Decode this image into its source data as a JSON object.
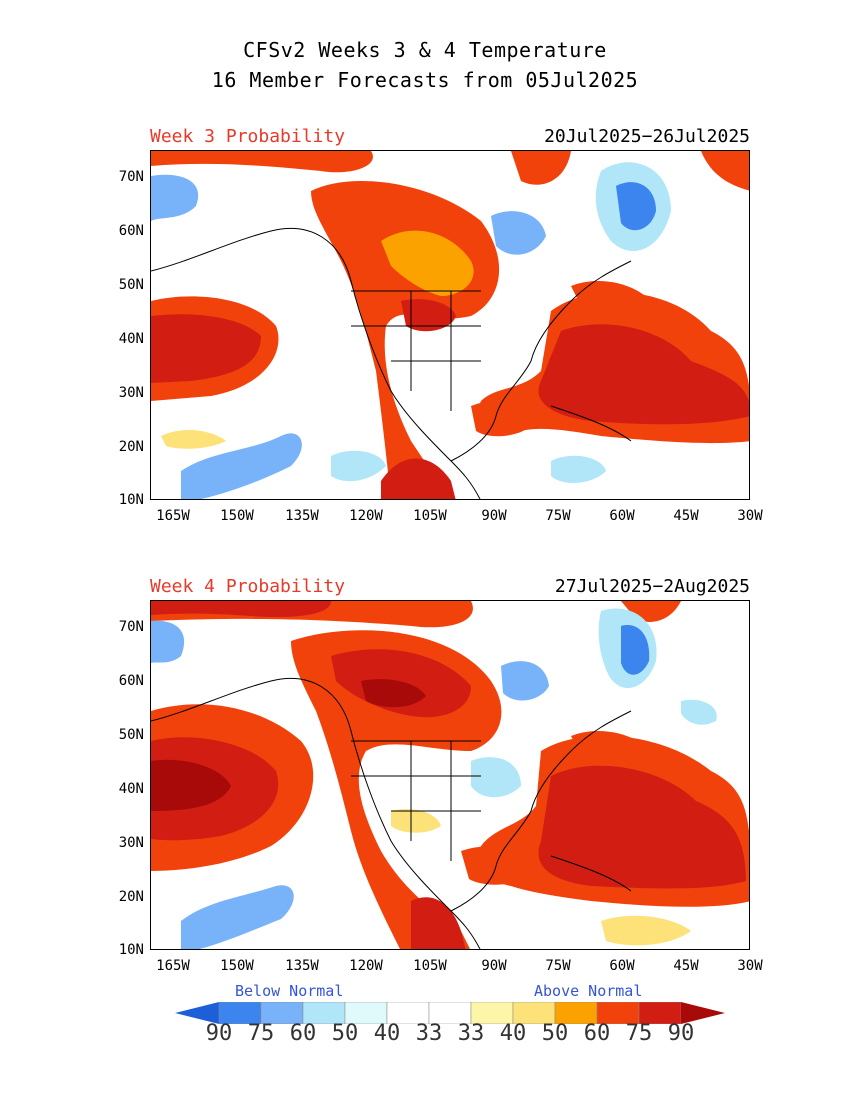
{
  "title_line1": "CFSv2 Weeks 3 & 4 Temperature",
  "title_line2": "16 Member Forecasts from 05Jul2025",
  "panels": [
    {
      "label": "Week 3 Probability",
      "dates": "20Jul2025−26Jul2025"
    },
    {
      "label": "Week 4 Probability",
      "dates": "27Jul2025−2Aug2025"
    }
  ],
  "lat_ticks": [
    "70N",
    "60N",
    "50N",
    "40N",
    "30N",
    "20N",
    "10N"
  ],
  "lon_ticks": [
    "165W",
    "150W",
    "135W",
    "120W",
    "105W",
    "90W",
    "75W",
    "60W",
    "45W",
    "30W"
  ],
  "legend": {
    "below_label": "Below Normal",
    "above_label": "Above Normal",
    "values": [
      "90",
      "75",
      "60",
      "50",
      "40",
      "33",
      "33",
      "40",
      "50",
      "60",
      "75",
      "90"
    ],
    "colors": [
      "#1c5fd6",
      "#3c84ee",
      "#78b2f8",
      "#b0e6f8",
      "#e0fafc",
      "#ffffff",
      "#ffffff",
      "#fdf6a8",
      "#fde27a",
      "#fca200",
      "#f2420c",
      "#d21e12",
      "#a80a0a"
    ]
  },
  "colors": {
    "above_33": "#fdf6a8",
    "above_40": "#fde27a",
    "above_50": "#fca200",
    "above_60": "#f2420c",
    "above_75": "#d21e12",
    "above_90": "#a80a0a",
    "below_33": "#e0fafc",
    "below_40": "#b0e6f8",
    "below_50": "#78b2f8",
    "below_60": "#3c84ee",
    "below_75": "#1c5fd6",
    "label_red": "#e8392a",
    "legend_blue": "#3555d8"
  }
}
